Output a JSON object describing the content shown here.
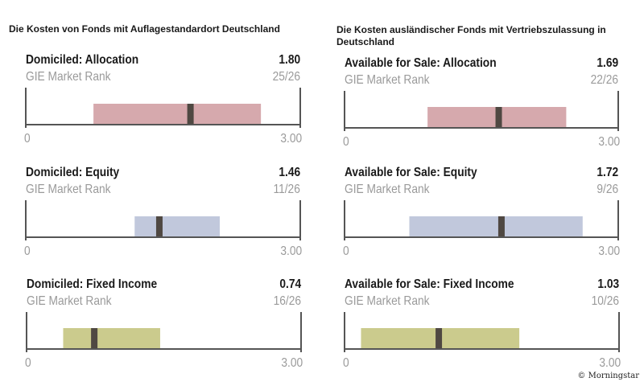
{
  "titles": {
    "left": "Die Kosten von Fonds mit Auflagestandardort Deutschland",
    "right": "Die Kosten ausländischer Fonds mit Vertriebszulassung in Deutschland"
  },
  "credit": "© Morningstar",
  "chart_data": [
    {
      "type": "bar",
      "title": "Domiciled: Allocation",
      "value": 1.8,
      "value_label": "1.80",
      "rank_label": "GIE Market Rank",
      "rank": "25/26",
      "range": [
        0.74,
        2.57
      ],
      "xlim": [
        0,
        3.0
      ],
      "tick_labels": [
        "0",
        "3.00"
      ],
      "color": "#d6a9ad"
    },
    {
      "type": "bar",
      "title": "Domiciled: Equity",
      "value": 1.46,
      "value_label": "1.46",
      "rank_label": "GIE Market Rank",
      "rank": "11/26",
      "range": [
        1.19,
        2.12
      ],
      "xlim": [
        0,
        3.0
      ],
      "tick_labels": [
        "0",
        "3.00"
      ],
      "color": "#c1c8dc"
    },
    {
      "type": "bar",
      "title": "Domiciled: Fixed Income",
      "value": 0.74,
      "value_label": "0.74",
      "rank_label": "GIE Market Rank",
      "rank": "16/26",
      "range": [
        0.4,
        1.46
      ],
      "xlim": [
        0,
        3.0
      ],
      "tick_labels": [
        "0",
        "3.00"
      ],
      "color": "#cbcb8d"
    },
    {
      "type": "bar",
      "title": "Available for Sale: Allocation",
      "value": 1.69,
      "value_label": "1.69",
      "rank_label": "GIE Market Rank",
      "rank": "22/26",
      "range": [
        0.91,
        2.43
      ],
      "xlim": [
        0,
        3.0
      ],
      "tick_labels": [
        "0",
        "3.00"
      ],
      "color": "#d6a9ad"
    },
    {
      "type": "bar",
      "title": "Available for Sale: Equity",
      "value": 1.72,
      "value_label": "1.72",
      "rank_label": "GIE Market Rank",
      "rank": "9/26",
      "range": [
        0.71,
        2.61
      ],
      "xlim": [
        0,
        3.0
      ],
      "tick_labels": [
        "0",
        "3.00"
      ],
      "color": "#c1c8dc"
    },
    {
      "type": "bar",
      "title": "Available for Sale: Fixed Income",
      "value": 1.03,
      "value_label": "1.03",
      "rank_label": "GIE Market Rank",
      "rank": "10/26",
      "range": [
        0.18,
        1.91
      ],
      "xlim": [
        0,
        3.0
      ],
      "tick_labels": [
        "0",
        "3.00"
      ],
      "color": "#cbcb8d"
    }
  ],
  "marker_color": "#4f4842",
  "axis_color": "#555555"
}
